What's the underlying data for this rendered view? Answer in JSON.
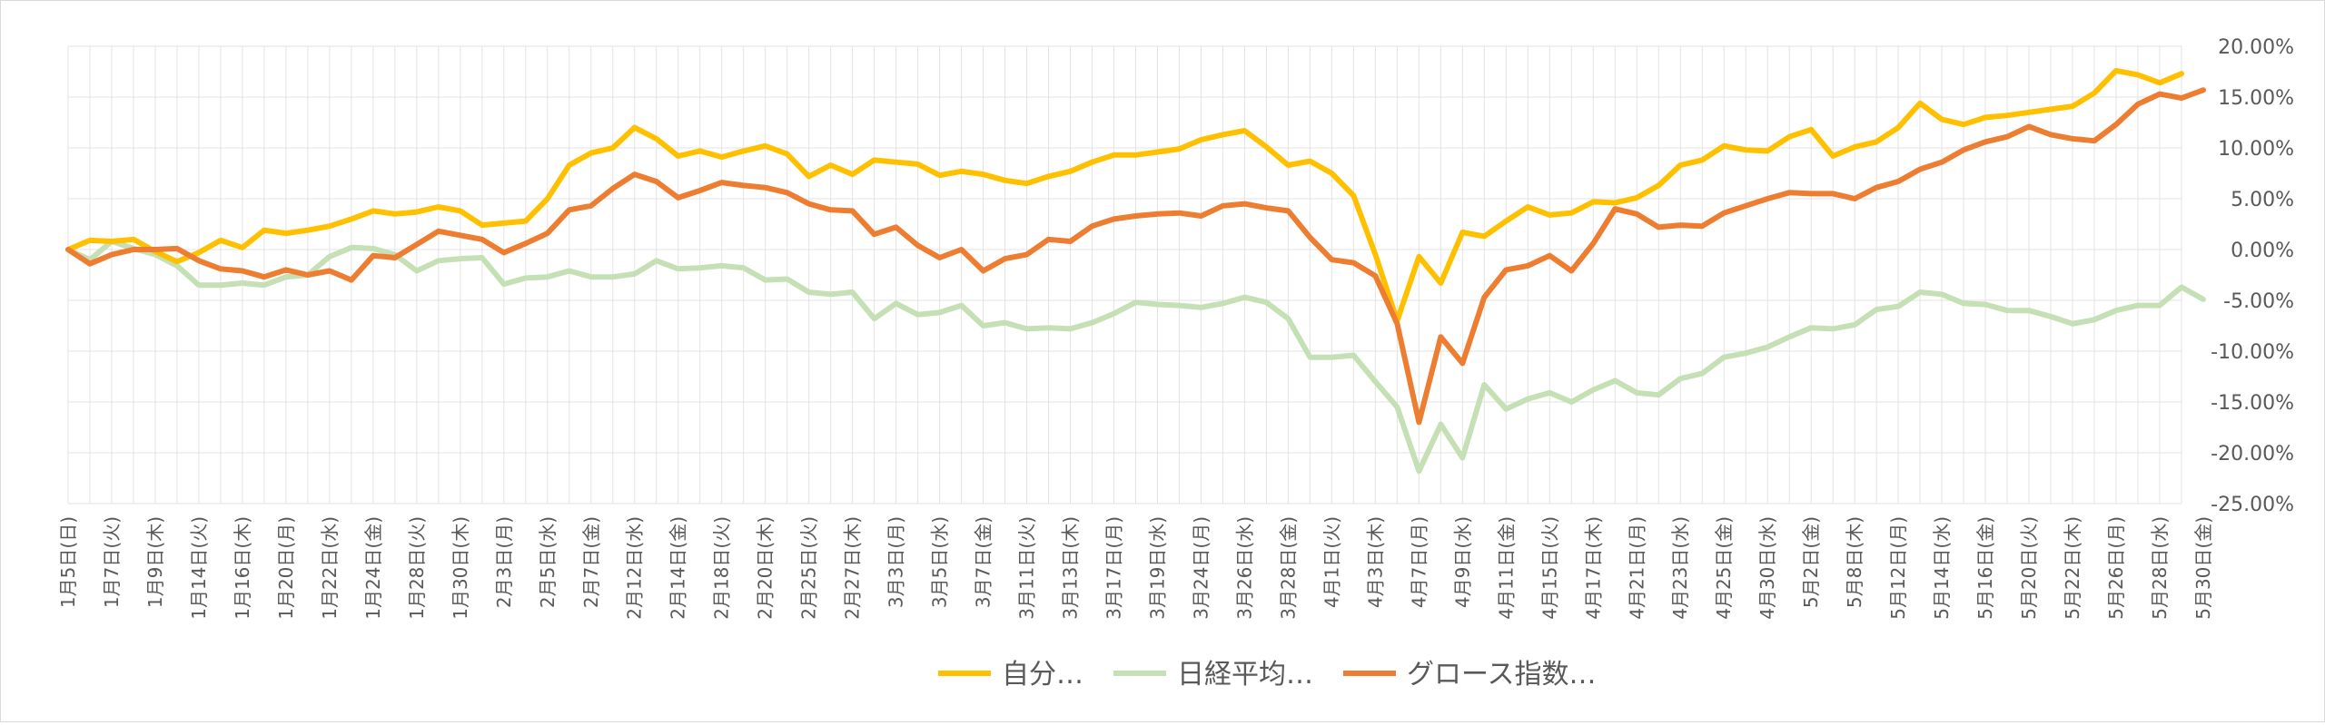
{
  "chart_data": {
    "type": "line",
    "title": "",
    "xlabel": "",
    "ylabel": "",
    "ylim": [
      -25,
      20
    ],
    "y_ticks": [
      "20.00%",
      "15.00%",
      "10.00%",
      "5.00%",
      "0.00%",
      "-5.00%",
      "-10.00%",
      "-15.00%",
      "-20.00%",
      "-25.00%"
    ],
    "grid": true,
    "legend_position": "bottom",
    "x_labels": [
      "1月5日(日)",
      "1月7日(火)",
      "1月9日(木)",
      "1月14日(火)",
      "1月16日(木)",
      "1月20日(月)",
      "1月22日(水)",
      "1月24日(金)",
      "1月28日(火)",
      "1月30日(木)",
      "2月3日(月)",
      "2月5日(水)",
      "2月7日(金)",
      "2月12日(水)",
      "2月14日(金)",
      "2月18日(火)",
      "2月20日(木)",
      "2月25日(火)",
      "2月27日(木)",
      "3月3日(月)",
      "3月5日(水)",
      "3月7日(金)",
      "3月11日(火)",
      "3月13日(木)",
      "3月17日(月)",
      "3月19日(水)",
      "3月24日(月)",
      "3月26日(水)",
      "3月28日(金)",
      "4月1日(火)",
      "4月3日(木)",
      "4月7日(月)",
      "4月9日(水)",
      "4月11日(金)",
      "4月15日(火)",
      "4月17日(木)",
      "4月21日(月)",
      "4月23日(水)",
      "4月25日(金)",
      "4月30日(水)",
      "5月2日(金)",
      "5月8日(木)",
      "5月12日(月)",
      "5月14日(水)",
      "5月16日(金)",
      "5月20日(火)",
      "5月22日(木)",
      "5月26日(月)",
      "5月28日(水)",
      "5月30日(金)"
    ],
    "series": [
      {
        "name": "自分…",
        "color": "#FFC000",
        "values": [
          0.0,
          0.9,
          0.8,
          1.0,
          -0.2,
          -1.2,
          -0.3,
          0.9,
          0.2,
          1.9,
          1.6,
          1.9,
          2.3,
          3.0,
          3.8,
          3.5,
          3.7,
          4.2,
          3.8,
          2.4,
          2.6,
          2.8,
          5.0,
          8.3,
          9.5,
          10.0,
          12.0,
          10.9,
          9.2,
          9.7,
          9.1,
          9.7,
          10.2,
          9.4,
          7.2,
          8.3,
          7.4,
          8.8,
          8.6,
          8.4,
          7.3,
          7.7,
          7.4,
          6.8,
          6.5,
          7.2,
          7.7,
          8.6,
          9.3,
          9.3,
          9.6,
          9.9,
          10.8,
          11.3,
          11.7,
          10.1,
          8.3,
          8.7,
          7.5,
          5.3,
          -0.5,
          -7.0,
          -0.7,
          -3.3,
          1.7,
          1.3,
          2.8,
          4.2,
          3.4,
          3.6,
          4.7,
          4.6,
          5.1,
          6.3,
          8.3,
          8.8,
          10.2,
          9.8,
          9.7,
          11.1,
          11.8,
          9.2,
          10.1,
          10.6,
          12.0,
          14.4,
          12.8,
          12.3,
          13.0,
          13.2,
          13.5,
          13.8,
          14.1,
          15.4,
          17.6,
          17.2,
          16.4,
          17.3
        ]
      },
      {
        "name": "日経平均…",
        "color": "#C5E0B4",
        "values": [
          0.0,
          -1.0,
          0.8,
          0.1,
          -0.5,
          -1.6,
          -3.5,
          -3.5,
          -3.3,
          -3.5,
          -2.7,
          -2.5,
          -0.7,
          0.2,
          0.1,
          -0.5,
          -2.1,
          -1.1,
          -0.9,
          -0.8,
          -3.4,
          -2.8,
          -2.7,
          -2.1,
          -2.7,
          -2.7,
          -2.4,
          -1.1,
          -1.9,
          -1.8,
          -1.6,
          -1.8,
          -3.0,
          -2.9,
          -4.2,
          -4.4,
          -4.2,
          -6.8,
          -5.3,
          -6.4,
          -6.2,
          -5.5,
          -7.5,
          -7.2,
          -7.8,
          -7.7,
          -7.8,
          -7.2,
          -6.3,
          -5.2,
          -5.4,
          -5.5,
          -5.7,
          -5.3,
          -4.7,
          -5.2,
          -6.8,
          -10.6,
          -10.6,
          -10.4,
          -13.0,
          -15.5,
          -21.8,
          -17.2,
          -20.5,
          -13.3,
          -15.7,
          -14.7,
          -14.1,
          -15.0,
          -13.8,
          -12.9,
          -14.1,
          -14.3,
          -12.7,
          -12.2,
          -10.6,
          -10.2,
          -9.6,
          -8.6,
          -7.7,
          -7.8,
          -7.4,
          -5.9,
          -5.6,
          -4.2,
          -4.4,
          -5.3,
          -5.4,
          -6.0,
          -6.0,
          -6.6,
          -7.3,
          -6.9,
          -6.0,
          -5.5,
          -5.5,
          -3.7,
          -4.9
        ]
      },
      {
        "name": "グロース指数…",
        "color": "#ED7D31",
        "values": [
          0.0,
          -1.4,
          -0.5,
          0.0,
          0.0,
          0.1,
          -1.1,
          -1.9,
          -2.1,
          -2.7,
          -2.0,
          -2.5,
          -2.1,
          -3.0,
          -0.6,
          -0.8,
          0.5,
          1.8,
          1.4,
          1.0,
          -0.3,
          0.6,
          1.6,
          3.9,
          4.3,
          6.0,
          7.4,
          6.7,
          5.1,
          5.8,
          6.6,
          6.3,
          6.1,
          5.6,
          4.5,
          3.9,
          3.8,
          1.5,
          2.2,
          0.4,
          -0.8,
          0.0,
          -2.1,
          -0.9,
          -0.5,
          1.0,
          0.8,
          2.3,
          3.0,
          3.3,
          3.5,
          3.6,
          3.3,
          4.3,
          4.5,
          4.1,
          3.8,
          1.2,
          -1.0,
          -1.3,
          -2.6,
          -7.3,
          -17.0,
          -8.6,
          -11.2,
          -4.7,
          -2.0,
          -1.6,
          -0.6,
          -2.1,
          0.6,
          4.0,
          3.5,
          2.2,
          2.4,
          2.3,
          3.6,
          4.3,
          5.0,
          5.6,
          5.5,
          5.5,
          5.0,
          6.1,
          6.7,
          7.9,
          8.6,
          9.8,
          10.6,
          11.1,
          12.1,
          11.3,
          10.9,
          10.7,
          12.3,
          14.3,
          15.3,
          14.9,
          15.7
        ]
      }
    ]
  }
}
